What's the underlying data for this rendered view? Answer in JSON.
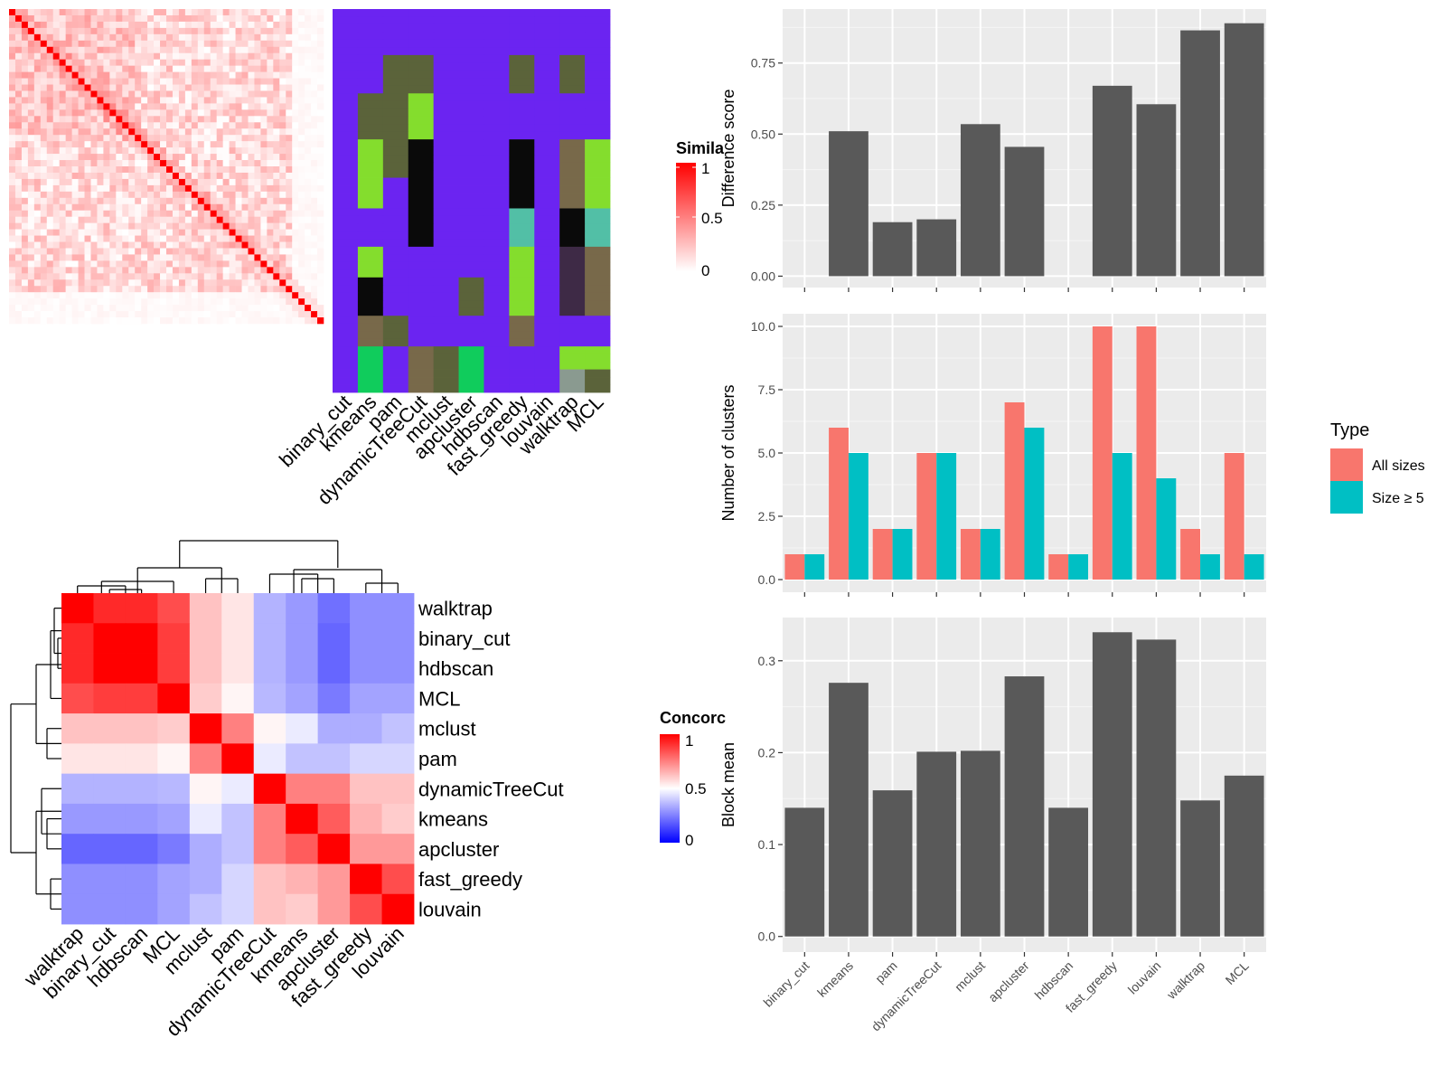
{
  "methods": [
    "binary_cut",
    "kmeans",
    "pam",
    "dynamicTreeCut",
    "mclust",
    "apcluster",
    "hdbscan",
    "fast_greedy",
    "louvain",
    "walktrap",
    "MCL"
  ],
  "colors": {
    "panel_bg": "#ebebeb",
    "grid": "#ffffff",
    "bar_dark": "#595959",
    "all_sizes": "#f8766d",
    "size5": "#00bfc4",
    "sim_low": "#ffffff",
    "sim_high": "#ff0000",
    "conc_low": "#0000ff",
    "conc_mid": "#ffffff",
    "conc_high": "#ff0000"
  },
  "similarity_legend": {
    "title": "Simila",
    "ticks": [
      "1",
      "0.5",
      "0"
    ]
  },
  "concordance_legend": {
    "title": "Concorc",
    "ticks": [
      "1",
      "0.5",
      "0"
    ]
  },
  "type_legend": {
    "title": "Type",
    "items": [
      "All sizes",
      "Size ≥ 5"
    ]
  },
  "concordance_heatmap": {
    "row_order": [
      "walktrap",
      "binary_cut",
      "hdbscan",
      "MCL",
      "mclust",
      "pam",
      "dynamicTreeCut",
      "kmeans",
      "apcluster",
      "fast_greedy",
      "louvain"
    ],
    "col_order": [
      "walktrap",
      "binary_cut",
      "hdbscan",
      "MCL",
      "mclust",
      "pam",
      "dynamicTreeCut",
      "kmeans",
      "apcluster",
      "fast_greedy",
      "louvain"
    ],
    "values": [
      [
        1.0,
        0.92,
        0.92,
        0.85,
        0.62,
        0.55,
        0.35,
        0.3,
        0.22,
        0.28,
        0.28
      ],
      [
        0.92,
        1.0,
        1.0,
        0.88,
        0.62,
        0.55,
        0.35,
        0.3,
        0.2,
        0.28,
        0.28
      ],
      [
        0.92,
        1.0,
        1.0,
        0.88,
        0.62,
        0.55,
        0.35,
        0.3,
        0.2,
        0.28,
        0.28
      ],
      [
        0.85,
        0.88,
        0.88,
        1.0,
        0.6,
        0.52,
        0.36,
        0.32,
        0.24,
        0.32,
        0.32
      ],
      [
        0.62,
        0.62,
        0.62,
        0.6,
        1.0,
        0.75,
        0.52,
        0.46,
        0.34,
        0.34,
        0.38
      ],
      [
        0.55,
        0.55,
        0.55,
        0.52,
        0.75,
        1.0,
        0.46,
        0.38,
        0.38,
        0.42,
        0.42
      ],
      [
        0.35,
        0.35,
        0.35,
        0.36,
        0.52,
        0.46,
        1.0,
        0.75,
        0.75,
        0.62,
        0.62
      ],
      [
        0.3,
        0.3,
        0.3,
        0.32,
        0.46,
        0.38,
        0.75,
        1.0,
        0.82,
        0.65,
        0.6
      ],
      [
        0.2,
        0.2,
        0.2,
        0.24,
        0.34,
        0.38,
        0.75,
        0.82,
        1.0,
        0.7,
        0.7
      ],
      [
        0.28,
        0.28,
        0.28,
        0.32,
        0.34,
        0.42,
        0.62,
        0.65,
        0.7,
        1.0,
        0.85
      ],
      [
        0.28,
        0.28,
        0.28,
        0.32,
        0.38,
        0.42,
        0.62,
        0.6,
        0.7,
        0.85,
        1.0
      ]
    ]
  },
  "chart_data": [
    {
      "type": "bar",
      "categories": [
        "binary_cut",
        "kmeans",
        "pam",
        "dynamicTreeCut",
        "mclust",
        "apcluster",
        "hdbscan",
        "fast_greedy",
        "louvain",
        "walktrap",
        "MCL"
      ],
      "values": [
        0,
        0.51,
        0.19,
        0.2,
        0.535,
        0.455,
        0,
        0.67,
        0.605,
        0.865,
        0.89
      ],
      "ylabel": "Difference score",
      "ylim": [
        -0.04,
        0.94
      ],
      "yticks": [
        "0.00",
        "0.25",
        "0.50",
        "0.75"
      ]
    },
    {
      "type": "bar",
      "categories": [
        "binary_cut",
        "kmeans",
        "pam",
        "dynamicTreeCut",
        "mclust",
        "apcluster",
        "hdbscan",
        "fast_greedy",
        "louvain",
        "walktrap",
        "MCL"
      ],
      "series": [
        {
          "name": "All sizes",
          "values": [
            1,
            6,
            2,
            5,
            2,
            7,
            1,
            10,
            10,
            2,
            5
          ]
        },
        {
          "name": "Size ≥ 5",
          "values": [
            1,
            5,
            2,
            5,
            2,
            6,
            1,
            5,
            4,
            1,
            1
          ]
        }
      ],
      "ylabel": "Number of clusters",
      "ylim": [
        -0.5,
        10.5
      ],
      "yticks": [
        "0.0",
        "2.5",
        "5.0",
        "7.5",
        "10.0"
      ],
      "legend": "right"
    },
    {
      "type": "bar",
      "categories": [
        "binary_cut",
        "kmeans",
        "pam",
        "dynamicTreeCut",
        "mclust",
        "apcluster",
        "hdbscan",
        "fast_greedy",
        "louvain",
        "walktrap",
        "MCL"
      ],
      "values": [
        0.14,
        0.276,
        0.159,
        0.201,
        0.202,
        0.283,
        0.14,
        0.331,
        0.323,
        0.148,
        0.175
      ],
      "ylabel": "Block mean",
      "ylim": [
        -0.017,
        0.347
      ],
      "yticks": [
        "0.0",
        "0.1",
        "0.2",
        "0.3"
      ]
    }
  ]
}
